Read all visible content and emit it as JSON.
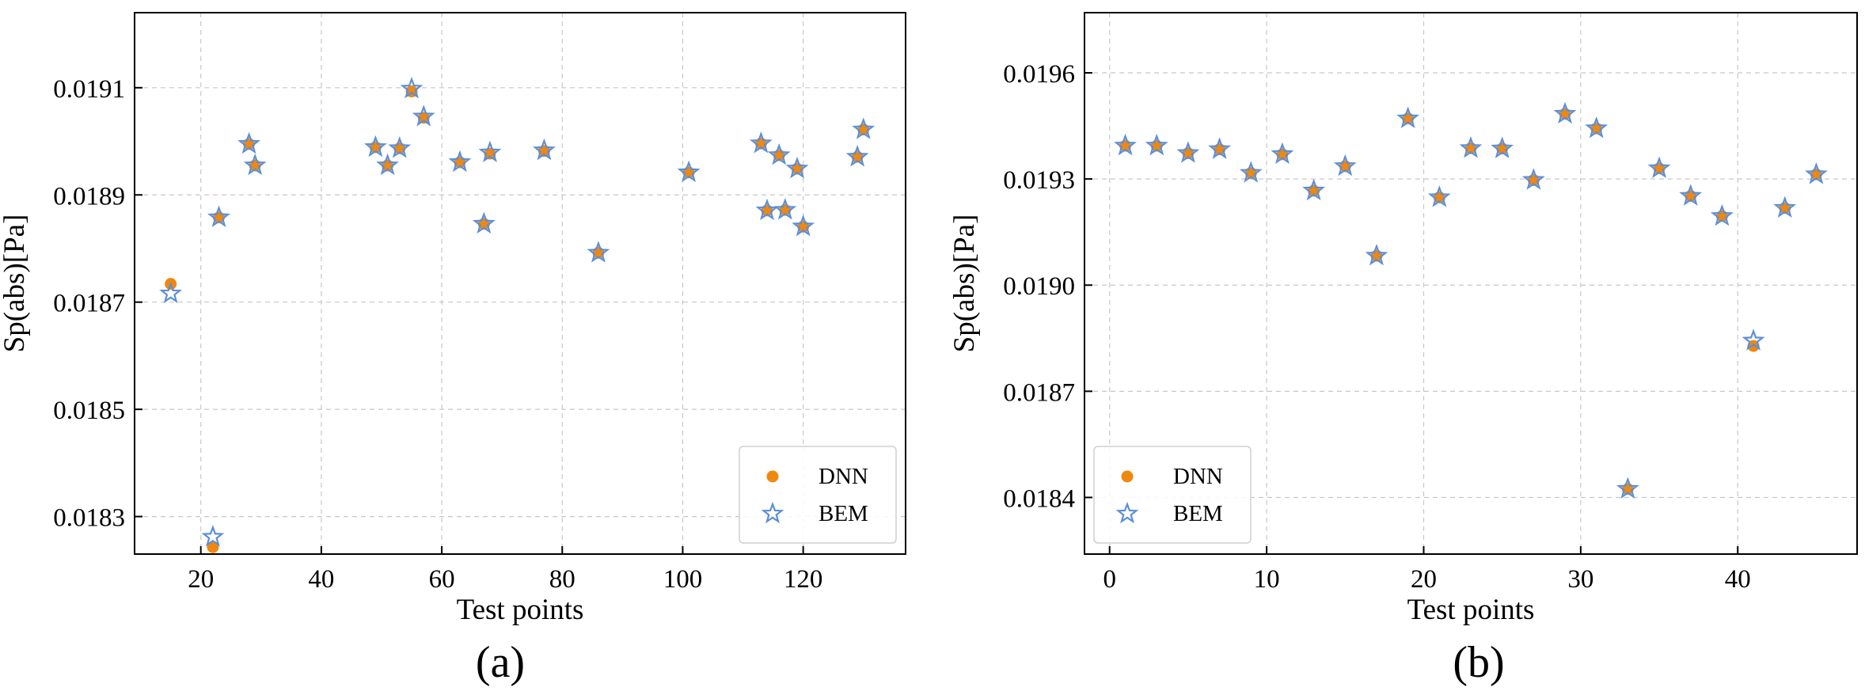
{
  "figure": {
    "colors": {
      "dnn": "#f0880f",
      "bem": "#5b8fd8",
      "grid": "#c8c8c8",
      "axis": "#000000"
    },
    "series_names": {
      "dnn": "DNN",
      "bem": "BEM"
    }
  },
  "chart_data": [
    {
      "type": "scatter",
      "panel_label": "(a)",
      "xlabel": "Test points",
      "ylabel": "Sp(abs)[Pa]",
      "xlim": [
        9,
        137
      ],
      "ylim": [
        0.01823,
        0.01924
      ],
      "xticks": [
        20,
        40,
        60,
        80,
        100,
        120
      ],
      "xtick_labels": [
        "20",
        "40",
        "60",
        "80",
        "100",
        "120"
      ],
      "yticks": [
        0.0183,
        0.0185,
        0.0187,
        0.0189,
        0.0191
      ],
      "ytick_labels": [
        "0.0183",
        "0.0185",
        "0.0187",
        "0.0189",
        "0.0191"
      ],
      "grid": true,
      "legend_position": "lower-right",
      "legend": [
        "DNN",
        "BEM"
      ],
      "series": [
        {
          "name": "DNN",
          "marker": "circle",
          "x": [
            15,
            22,
            23,
            28,
            29,
            49,
            51,
            53,
            55,
            57,
            63,
            67,
            68,
            77,
            86,
            101,
            113,
            114,
            116,
            117,
            119,
            120,
            129,
            130
          ],
          "y": [
            0.018734,
            0.018243,
            0.018858,
            0.018995,
            0.018955,
            0.018989,
            0.018955,
            0.018987,
            0.019093,
            0.019044,
            0.018961,
            0.018846,
            0.018977,
            0.018982,
            0.018792,
            0.018942,
            0.018996,
            0.018871,
            0.018974,
            0.018872,
            0.018949,
            0.018841,
            0.018971,
            0.019022
          ]
        },
        {
          "name": "BEM",
          "marker": "star",
          "x": [
            15,
            22,
            23,
            28,
            29,
            49,
            51,
            53,
            55,
            57,
            63,
            67,
            68,
            77,
            86,
            101,
            113,
            114,
            116,
            117,
            119,
            120,
            129,
            130
          ],
          "y": [
            0.018716,
            0.018262,
            0.018858,
            0.018995,
            0.018955,
            0.018989,
            0.018955,
            0.018987,
            0.019098,
            0.019046,
            0.018961,
            0.018846,
            0.018979,
            0.018983,
            0.018792,
            0.018942,
            0.018996,
            0.018871,
            0.018974,
            0.018872,
            0.018949,
            0.018841,
            0.018971,
            0.019022
          ]
        }
      ]
    },
    {
      "type": "scatter",
      "panel_label": "(b)",
      "xlabel": "Test points",
      "ylabel": "Sp(abs)[Pa]",
      "xlim": [
        -1.6,
        47.6
      ],
      "ylim": [
        0.01824,
        0.01977
      ],
      "xticks": [
        0,
        10,
        20,
        30,
        40
      ],
      "xtick_labels": [
        "0",
        "10",
        "20",
        "30",
        "40"
      ],
      "yticks": [
        0.0184,
        0.0187,
        0.019,
        0.0193,
        0.0196
      ],
      "ytick_labels": [
        "0.0184",
        "0.0187",
        "0.0190",
        "0.0193",
        "0.0196"
      ],
      "grid": true,
      "legend_position": "lower-left",
      "legend": [
        "DNN",
        "BEM"
      ],
      "series": [
        {
          "name": "DNN",
          "marker": "circle",
          "x": [
            1,
            3,
            5,
            7,
            9,
            11,
            13,
            15,
            17,
            19,
            21,
            23,
            25,
            27,
            29,
            31,
            33,
            35,
            37,
            39,
            41,
            43,
            45
          ],
          "y": [
            0.019394,
            0.019394,
            0.019373,
            0.019384,
            0.019317,
            0.01937,
            0.019267,
            0.019336,
            0.019083,
            0.019471,
            0.019248,
            0.019387,
            0.019386,
            0.019297,
            0.019484,
            0.019443,
            0.018424,
            0.01933,
            0.019252,
            0.019195,
            0.018828,
            0.019218,
            0.019313
          ]
        },
        {
          "name": "BEM",
          "marker": "star",
          "x": [
            1,
            3,
            5,
            7,
            9,
            11,
            13,
            15,
            17,
            19,
            21,
            23,
            25,
            27,
            29,
            31,
            33,
            35,
            37,
            39,
            41,
            43,
            45
          ],
          "y": [
            0.019394,
            0.019394,
            0.019373,
            0.019384,
            0.019317,
            0.01937,
            0.019267,
            0.019336,
            0.019083,
            0.019471,
            0.019248,
            0.019387,
            0.019386,
            0.019297,
            0.019484,
            0.019443,
            0.018424,
            0.01933,
            0.019252,
            0.019195,
            0.018843,
            0.019218,
            0.019313
          ]
        }
      ]
    }
  ]
}
